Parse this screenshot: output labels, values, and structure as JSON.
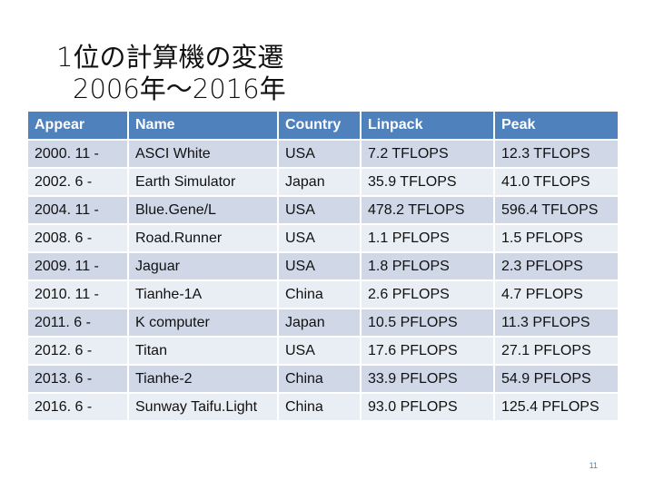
{
  "slide": {
    "title_line1": "1位の計算機の変遷",
    "title_line2": "2006年～2016年",
    "page_number": "11"
  },
  "table": {
    "headers": [
      "Appear",
      "Name",
      "Country",
      "Linpack",
      "Peak"
    ],
    "rows": [
      [
        "2000. 11 -",
        "ASCI White",
        "USA",
        "7.2 TFLOPS",
        "12.3 TFLOPS"
      ],
      [
        "2002.  6 -",
        "Earth Simulator",
        "Japan",
        "35.9 TFLOPS",
        "41.0 TFLOPS"
      ],
      [
        "2004. 11 -",
        "Blue.Gene/L",
        "USA",
        "478.2 TFLOPS",
        "596.4 TFLOPS"
      ],
      [
        "2008.  6 -",
        "Road.Runner",
        "USA",
        "1.1 PFLOPS",
        "1.5 PFLOPS"
      ],
      [
        "2009. 11 -",
        "Jaguar",
        "USA",
        "1.8 PFLOPS",
        "2.3 PFLOPS"
      ],
      [
        "2010. 11 -",
        "Tianhe-1A",
        "China",
        "2.6 PFLOPS",
        "4.7 PFLOPS"
      ],
      [
        "2011.  6 -",
        "K computer",
        "Japan",
        "10.5 PFLOPS",
        "11.3 PFLOPS"
      ],
      [
        "2012.  6 -",
        "Titan",
        "USA",
        "17.6 PFLOPS",
        "27.1 PFLOPS"
      ],
      [
        "2013.  6 -",
        "Tianhe-2",
        "China",
        "33.9 PFLOPS",
        "54.9 PFLOPS"
      ],
      [
        "2016.  6 -",
        "Sunway Taifu.Light",
        "China",
        "93.0 PFLOPS",
        "125.4 PFLOPS"
      ]
    ]
  },
  "colors": {
    "header_bg": "#4f81bd",
    "row_odd_bg": "#d0d8e8",
    "row_even_bg": "#e9edf4",
    "page_number": "#4f81bd"
  }
}
